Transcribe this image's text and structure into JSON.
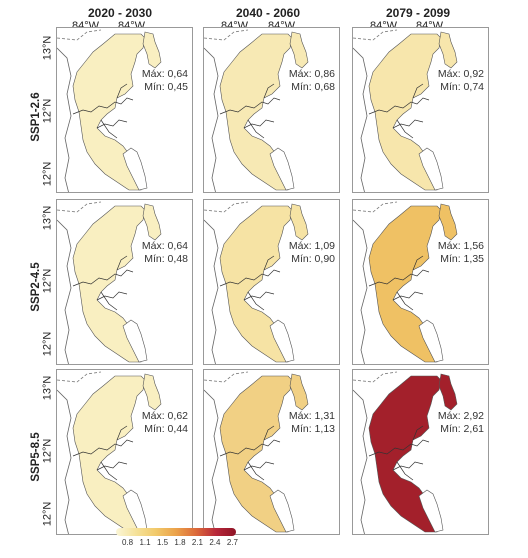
{
  "periods": [
    "2020 - 2030",
    "2040 - 2060",
    "2079 - 2099"
  ],
  "scenarios": [
    "SSP1-2.6",
    "SSP2-4.5",
    "SSP5-8.5"
  ],
  "longitude_labels": [
    "84°W",
    "84°W"
  ],
  "latitude_labels": [
    "13°N",
    "12°N",
    "12°N"
  ],
  "panels": [
    {
      "scenario": "SSP1-2.6",
      "period": "2020 - 2030",
      "max": "Máx: 0,64",
      "min": "Mín: 0,45",
      "fill": "#f9efc1"
    },
    {
      "scenario": "SSP1-2.6",
      "period": "2040 - 2060",
      "max": "Máx: 0,86",
      "min": "Mín: 0,68",
      "fill": "#f7e9b4"
    },
    {
      "scenario": "SSP1-2.6",
      "period": "2079 - 2099",
      "max": "Máx: 0,92",
      "min": "Mín: 0,74",
      "fill": "#f7e6ac"
    },
    {
      "scenario": "SSP2-4.5",
      "period": "2020 - 2030",
      "max": "Máx: 0,64",
      "min": "Mín: 0,48",
      "fill": "#f9efc1"
    },
    {
      "scenario": "SSP2-4.5",
      "period": "2040 - 2060",
      "max": "Máx: 1,09",
      "min": "Mín: 0,90",
      "fill": "#f6e3a4"
    },
    {
      "scenario": "SSP2-4.5",
      "period": "2079 - 2099",
      "max": "Máx: 1,56",
      "min": "Mín: 1,35",
      "fill": "#efc164"
    },
    {
      "scenario": "SSP5-8.5",
      "period": "2020 - 2030",
      "max": "Máx: 0,62",
      "min": "Mín: 0,44",
      "fill": "#f9efc1"
    },
    {
      "scenario": "SSP5-8.5",
      "period": "2040 - 2060",
      "max": "Máx: 1,31",
      "min": "Mín: 1,13",
      "fill": "#f1d084"
    },
    {
      "scenario": "SSP5-8.5",
      "period": "2079 - 2099",
      "max": "Máx: 2,92",
      "min": "Mín: 2,61",
      "fill": "#a3202b"
    }
  ],
  "legend": {
    "ticks": [
      "0.8",
      "1.1",
      "1.5",
      "1.8",
      "2.1",
      "2.4",
      "2.7"
    ],
    "colors": [
      "#fbf6d7",
      "#f5e29a",
      "#f1c96a",
      "#eba24a",
      "#dc6a3a",
      "#b8283a",
      "#8e1426"
    ]
  }
}
